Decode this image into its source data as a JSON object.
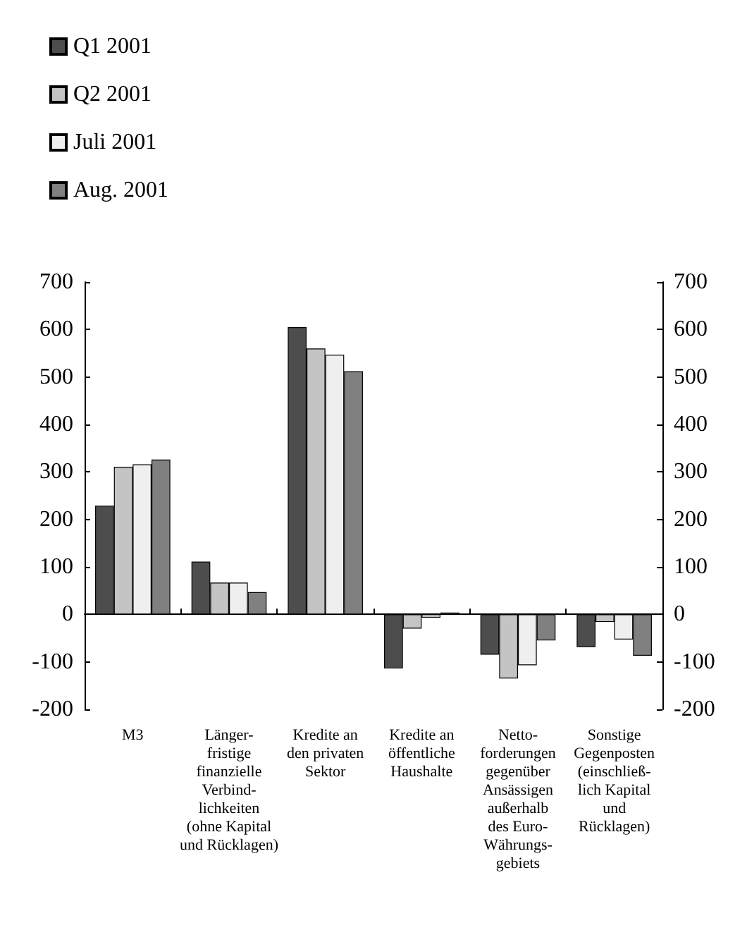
{
  "chart_data": {
    "type": "bar",
    "categories": [
      "M3",
      "Länger-\nfristige\nfinanzielle\nVerbind-\nlichkeiten\n(ohne Kapital\nund Rücklagen)",
      "Kredite an\nden privaten\nSektor",
      "Kredite an\nöffentliche\nHaushalte",
      "Netto-\nforderungen\ngegenüber\nAnsässigen\naußerhalb\ndes Euro-\nWährungs-\ngebiets",
      "Sonstige\nGegenposten\n(einschließ-\nlich Kapital\nund\nRücklagen)"
    ],
    "series": [
      {
        "name": "Q1 2001",
        "color": "#4d4d4d",
        "values": [
          229,
          111,
          605,
          -114,
          -85,
          -69
        ]
      },
      {
        "name": "Q2 2001",
        "color": "#c4c4c4",
        "values": [
          311,
          67,
          560,
          -30,
          -135,
          -16
        ]
      },
      {
        "name": "Juli 2001",
        "color": "#efefef",
        "values": [
          316,
          67,
          547,
          -7,
          -107,
          -53
        ]
      },
      {
        "name": "Aug. 2001",
        "color": "#808080",
        "values": [
          326,
          47,
          512,
          4,
          -55,
          -87
        ]
      }
    ],
    "ylim": [
      -200,
      700
    ],
    "yticks": [
      -200,
      -100,
      0,
      100,
      200,
      300,
      400,
      500,
      600,
      700
    ],
    "y2lim": [
      -200,
      700
    ],
    "y2ticks": [
      -200,
      -100,
      0,
      100,
      200,
      300,
      400,
      500,
      600,
      700
    ],
    "legend": "top left"
  }
}
